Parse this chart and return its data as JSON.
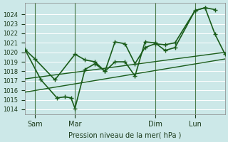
{
  "xlabel": "Pression niveau de la mer( hPa )",
  "bg_color": "#cce8e8",
  "grid_color": "#ffffff",
  "line_color": "#1a5c1a",
  "ylim": [
    1013.5,
    1025.2
  ],
  "yticks": [
    1014,
    1015,
    1016,
    1017,
    1018,
    1019,
    1020,
    1021,
    1022,
    1023,
    1024
  ],
  "xtick_labels": [
    "Sam",
    "Mar",
    "Dim",
    "Lun"
  ],
  "xtick_positions": [
    0.5,
    2.5,
    6.5,
    8.5
  ],
  "xlim": [
    0,
    10
  ],
  "vline_positions": [
    0.5,
    2.5,
    6.5,
    8.5
  ],
  "line1_x": [
    0,
    10
  ],
  "line1_y": [
    1017.2,
    1020.0
  ],
  "line2_x": [
    0,
    10
  ],
  "line2_y": [
    1015.8,
    1019.3
  ],
  "series1_x": [
    0.0,
    0.5,
    1.5,
    2.5,
    3.0,
    3.5,
    4.0,
    4.5,
    5.0,
    5.5,
    6.0,
    6.5,
    7.0,
    7.5,
    8.5,
    9.0,
    9.5
  ],
  "series1_y": [
    1020.3,
    1019.3,
    1017.1,
    1019.8,
    1019.2,
    1019.0,
    1018.0,
    1021.1,
    1020.9,
    1018.8,
    1020.5,
    1020.9,
    1020.8,
    1021.0,
    1024.4,
    1024.7,
    1024.5
  ],
  "series2_x": [
    0.0,
    0.8,
    1.6,
    2.0,
    2.3,
    2.5,
    3.0,
    3.5,
    4.0,
    4.5,
    5.0,
    5.5,
    6.0,
    6.5,
    7.0,
    7.5,
    8.5,
    9.0,
    9.5,
    10.0
  ],
  "series2_y": [
    1020.3,
    1017.1,
    1015.2,
    1015.3,
    1015.2,
    1014.1,
    1018.2,
    1018.8,
    1018.0,
    1019.0,
    1019.0,
    1017.5,
    1021.1,
    1021.0,
    1020.2,
    1020.5,
    1024.4,
    1024.7,
    1021.9,
    1019.8
  ],
  "marker": "+",
  "marker_size": 4,
  "linewidth": 1.2,
  "trend_linewidth": 1.0
}
